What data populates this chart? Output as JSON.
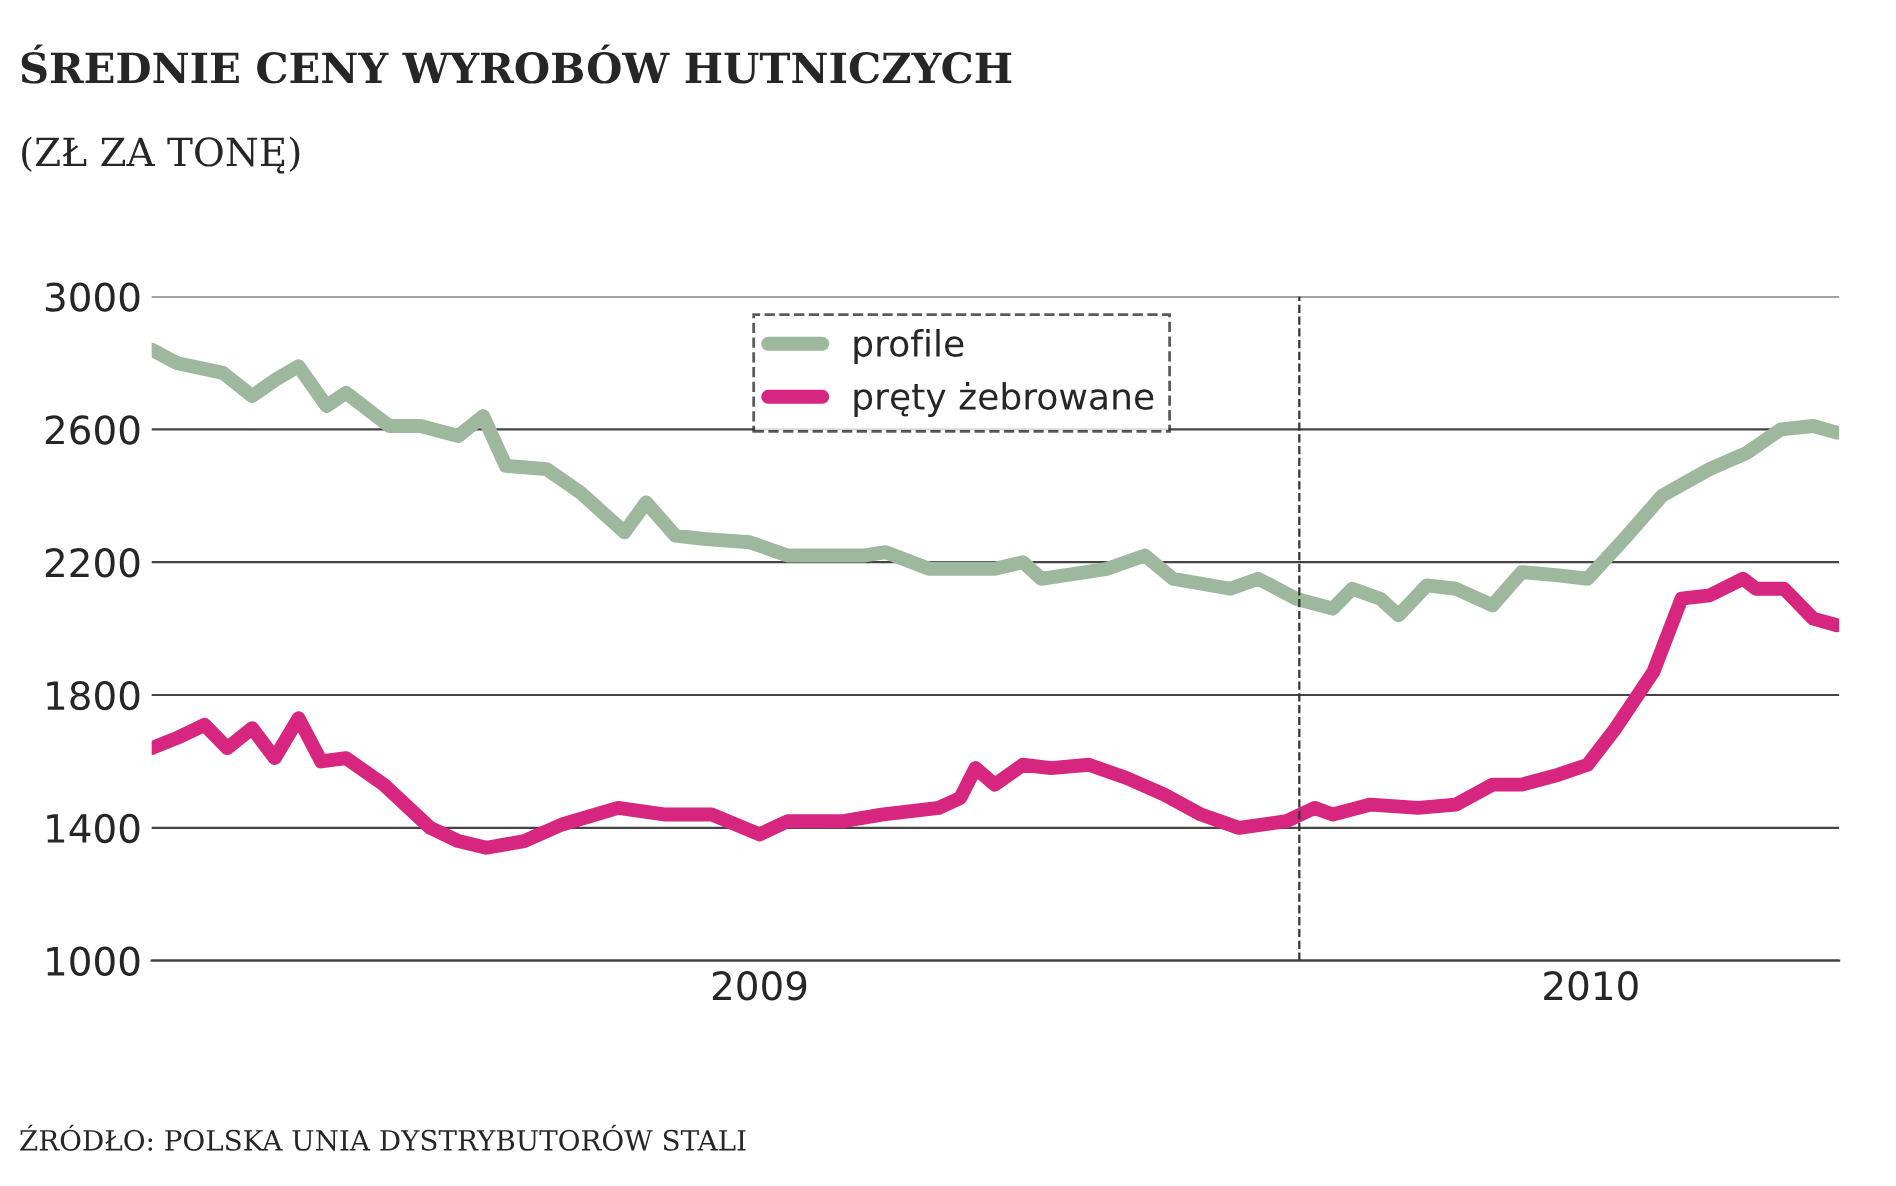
{
  "chart_data": {
    "type": "line",
    "title": "ŚREDNIE CENY WYROBÓW HUTNICZYCH",
    "subtitle": "(ZŁ ZA TONĘ)",
    "annotations": [
      "ŹRÓDŁO: POLSKA UNIA DYSTRYBUTORÓW STALI"
    ],
    "series": [
      {
        "name": "profile",
        "color": "#9db89d",
        "x": [
          2008.937,
          2008.96,
          2009.003,
          2009.03,
          2009.052,
          2009.073,
          2009.099,
          2009.117,
          2009.157,
          2009.186,
          2009.221,
          2009.244,
          2009.265,
          2009.303,
          2009.334,
          2009.375,
          2009.395,
          2009.422,
          2009.448,
          2009.491,
          2009.526,
          2009.596,
          2009.617,
          2009.657,
          2009.718,
          2009.744,
          2009.761,
          2009.822,
          2009.857,
          2009.883,
          2009.936,
          2009.962,
          2009.997,
          2010.031,
          2010.049,
          2010.075,
          2010.092,
          2010.118,
          2010.145,
          2010.179,
          2010.206,
          2010.24,
          2010.267,
          2010.301,
          2010.336,
          2010.38,
          2010.415,
          2010.446,
          2010.476,
          2010.498
        ],
        "values": [
          2840,
          2800,
          2770,
          2700,
          2750,
          2790,
          2670,
          2710,
          2610,
          2610,
          2580,
          2640,
          2490,
          2480,
          2410,
          2290,
          2380,
          2280,
          2270,
          2260,
          2220,
          2220,
          2230,
          2180,
          2180,
          2200,
          2150,
          2180,
          2220,
          2150,
          2120,
          2150,
          2090,
          2060,
          2120,
          2090,
          2040,
          2130,
          2120,
          2070,
          2170,
          2160,
          2150,
          2270,
          2400,
          2480,
          2530,
          2600,
          2610,
          2590
        ]
      },
      {
        "name": "pręty żebrowane",
        "color": "#d6267f",
        "x": [
          2008.937,
          2008.96,
          2008.986,
          2009.007,
          2009.03,
          2009.051,
          2009.073,
          2009.094,
          2009.117,
          2009.152,
          2009.195,
          2009.221,
          2009.247,
          2009.282,
          2009.317,
          2009.369,
          2009.413,
          2009.456,
          2009.5,
          2009.526,
          2009.578,
          2009.613,
          2009.666,
          2009.686,
          2009.7,
          2009.718,
          2009.744,
          2009.77,
          2009.805,
          2009.84,
          2009.875,
          2009.909,
          2009.944,
          2009.988,
          2010.014,
          2010.031,
          2010.066,
          2010.11,
          2010.145,
          2010.179,
          2010.206,
          2010.24,
          2010.267,
          2010.293,
          2010.328,
          2010.354,
          2010.38,
          2010.411,
          2010.423,
          2010.449,
          2010.476,
          2010.498
        ],
        "values": [
          1640,
          1670,
          1710,
          1640,
          1700,
          1610,
          1730,
          1600,
          1610,
          1530,
          1400,
          1360,
          1340,
          1360,
          1410,
          1460,
          1440,
          1440,
          1380,
          1420,
          1420,
          1440,
          1460,
          1490,
          1580,
          1530,
          1590,
          1580,
          1590,
          1550,
          1500,
          1440,
          1400,
          1420,
          1460,
          1440,
          1470,
          1460,
          1470,
          1530,
          1530,
          1560,
          1590,
          1700,
          1870,
          2090,
          2100,
          2150,
          2120,
          2120,
          2030,
          2010
        ]
      }
    ],
    "xlim": [
      2008.937,
      2010.5
    ],
    "xticks": [
      {
        "value": 2009.5,
        "label": "2009"
      },
      {
        "value": 2010.27,
        "label": "2010"
      }
    ],
    "ylim": [
      1000,
      3000
    ],
    "yticks": [
      1000,
      1400,
      1800,
      2200,
      2600,
      3000
    ],
    "ref_lines": [
      {
        "axis": "x",
        "value": 2010,
        "label": null,
        "color": "#333333",
        "line_style": "dashed"
      }
    ],
    "grid": "y",
    "legend": "top",
    "line_style": "solid",
    "marker": "none"
  }
}
